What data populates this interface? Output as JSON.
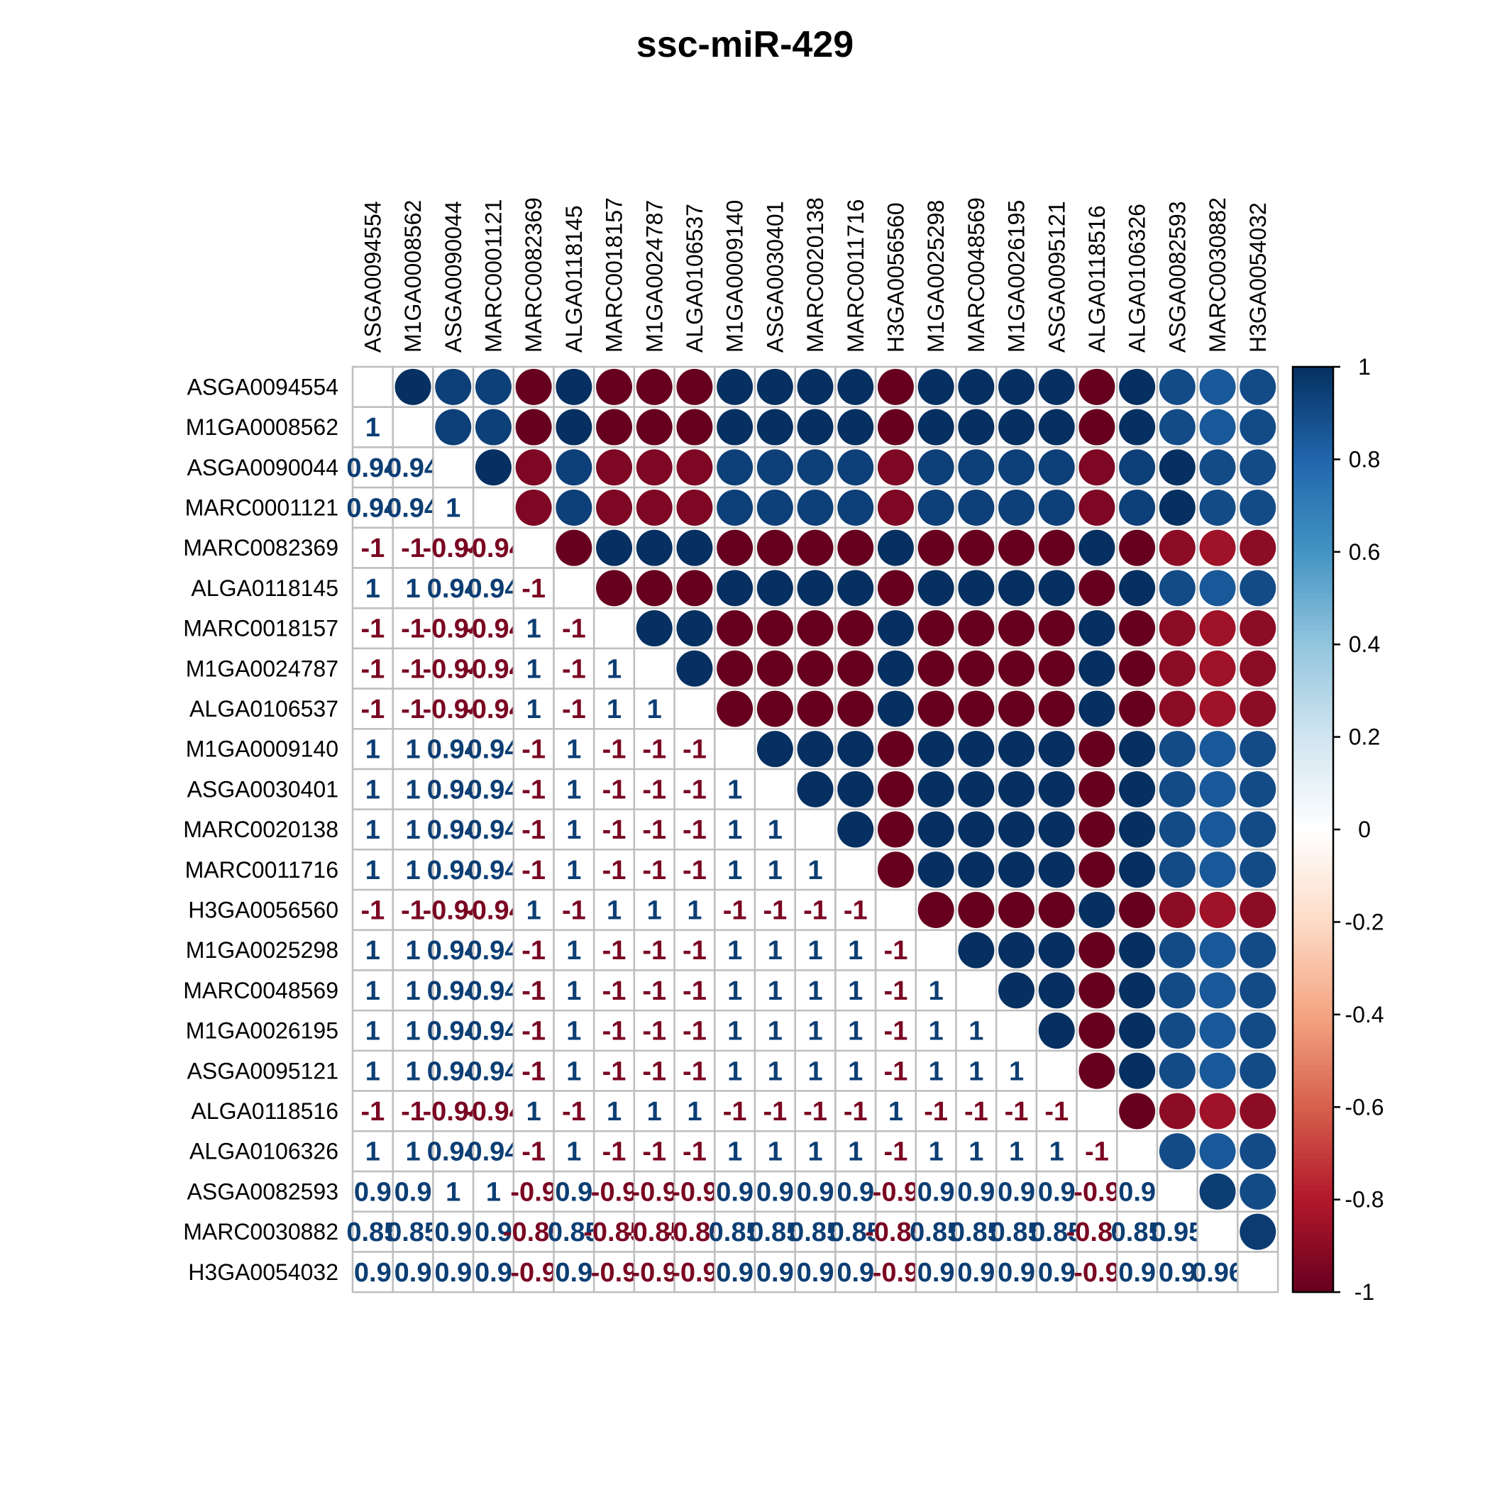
{
  "chart_data": {
    "type": "heatmap",
    "subtype": "correlation-matrix",
    "title": "ssc-miR-429",
    "upper_display": "circle",
    "lower_display": "number",
    "diagonal_shown": false,
    "labels": [
      "ASGA0094554",
      "M1GA0008562",
      "ASGA0090044",
      "MARC0001121",
      "MARC0082369",
      "ALGA0118145",
      "MARC0018157",
      "M1GA0024787",
      "ALGA0106537",
      "M1GA0009140",
      "ASGA0030401",
      "MARC0020138",
      "MARC0011716",
      "H3GA0056560",
      "M1GA0025298",
      "MARC0048569",
      "M1GA0026195",
      "ASGA0095121",
      "ALGA0118516",
      "ALGA0106326",
      "ASGA0082593",
      "MARC0030882",
      "H3GA0054032"
    ],
    "group_a": [
      "ASGA0094554",
      "M1GA0008562",
      "ALGA0118145",
      "M1GA0009140",
      "ASGA0030401",
      "MARC0020138",
      "MARC0011716",
      "M1GA0025298",
      "MARC0048569",
      "M1GA0026195",
      "ASGA0095121",
      "ALGA0106326"
    ],
    "group_b": [
      "MARC0082369",
      "MARC0018157",
      "M1GA0024787",
      "ALGA0106537",
      "H3GA0056560",
      "ALGA0118516"
    ],
    "partial_vars": [
      {
        "name": "ASGA0090044",
        "r": 0.94
      },
      {
        "name": "MARC0001121",
        "r": 0.94
      },
      {
        "name": "ASGA0082593",
        "r": 0.9
      },
      {
        "name": "MARC0030882",
        "r": 0.85
      },
      {
        "name": "H3GA0054032",
        "r": 0.9
      }
    ],
    "partial_pairs": [
      {
        "a": "ASGA0090044",
        "b": "MARC0001121",
        "r": 1
      },
      {
        "a": "ASGA0090044",
        "b": "ASGA0082593",
        "r": 1
      },
      {
        "a": "MARC0001121",
        "b": "ASGA0082593",
        "r": 1
      },
      {
        "a": "ASGA0082593",
        "b": "MARC0030882",
        "r": 0.95
      },
      {
        "a": "ASGA0082593",
        "b": "H3GA0054032",
        "r": 0.9
      },
      {
        "a": "MARC0030882",
        "b": "H3GA0054032",
        "r": 0.96
      }
    ],
    "color_scale": {
      "min": -1,
      "max": 1,
      "ticks": [
        1,
        0.8,
        0.6,
        0.4,
        0.2,
        0,
        -0.2,
        -0.4,
        -0.6,
        -0.8,
        -1
      ],
      "colors": [
        "#67001f",
        "#b2182b",
        "#d6604d",
        "#f4a582",
        "#fddbc7",
        "#ffffff",
        "#d1e5f0",
        "#92c5de",
        "#4393c3",
        "#2166ac",
        "#053061"
      ]
    },
    "grid_color": "#bebebe"
  }
}
